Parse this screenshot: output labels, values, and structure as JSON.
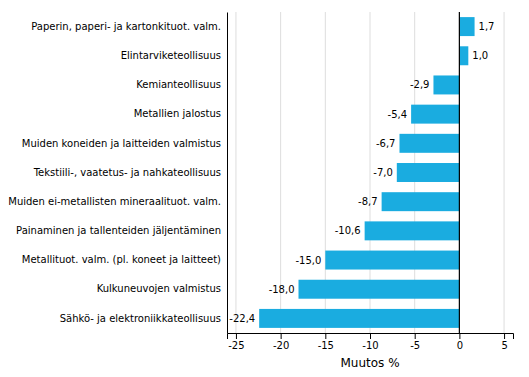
{
  "chart_data": {
    "type": "bar",
    "orientation": "horizontal",
    "categories": [
      "Sähkö- ja elektroniikkateollisuus",
      "Kulkuneuvojen valmistus",
      "Metallituot. valm. (pl. koneet ja laitteet)",
      "Painaminen ja tallenteiden jäljentäminen",
      "Muiden ei-metallisten mineraalituot. valm.",
      "Tekstiili-, vaatetus- ja nahkateollisuus",
      "Muiden koneiden ja laitteiden valmistus",
      "Metallien jalostus",
      "Kemianteollisuus",
      "Elintarviketeollisuus",
      "Paperin, paperi- ja kartonkituot. valm."
    ],
    "values": [
      -22.4,
      -18.0,
      -15.0,
      -10.6,
      -8.7,
      -7.0,
      -6.7,
      -5.4,
      -2.9,
      1.0,
      1.7
    ],
    "value_labels": [
      "-22,4",
      "-18,0",
      "-15,0",
      "-10,6",
      "-8,7",
      "-7,0",
      "-6,7",
      "-5,4",
      "-2,9",
      "1,0",
      "1,7"
    ],
    "data_labels": true,
    "color": "#1AACE0",
    "xlabel": "Muutos %",
    "xlim": [
      -26,
      6
    ],
    "xticks": [
      -25,
      -20,
      -15,
      -10,
      -5,
      0,
      5
    ],
    "grid": true
  }
}
